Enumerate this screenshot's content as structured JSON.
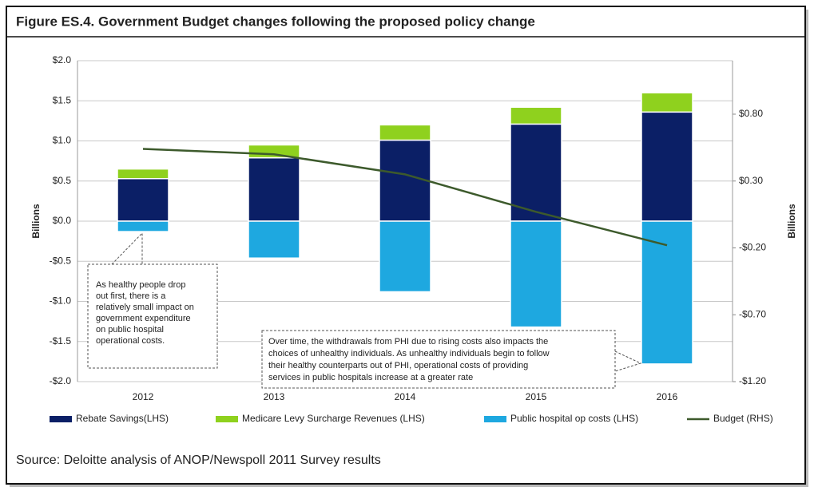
{
  "chart_data": {
    "type": "bar",
    "title": "Figure ES.4. Government Budget changes following the proposed policy change",
    "ylabel": "Billions",
    "y2label": "Billions",
    "categories": [
      "2012",
      "2013",
      "2014",
      "2015",
      "2016"
    ],
    "series": [
      {
        "name": "Rebate Savings(LHS)",
        "color": "#0b1f66",
        "values": [
          0.53,
          0.79,
          1.01,
          1.21,
          1.36
        ]
      },
      {
        "name": "Medicare Levy Surcharge Revenues (LHS)",
        "color": "#8fd11e",
        "values": [
          0.12,
          0.16,
          0.19,
          0.21,
          0.24
        ]
      },
      {
        "name": "Public hospital op costs (LHS)",
        "color": "#1ea8e0",
        "values": [
          -0.13,
          -0.46,
          -0.88,
          -1.32,
          -1.78
        ]
      },
      {
        "name": "Budget (RHS)",
        "color": "#3d5a2c",
        "type": "line",
        "axis": "y2",
        "values": [
          0.54,
          0.5,
          0.35,
          0.07,
          -0.18
        ]
      }
    ],
    "ylim": [
      -2.0,
      2.0
    ],
    "yticks": [
      {
        "value": 2.0,
        "label": "$2.0"
      },
      {
        "value": 1.5,
        "label": "$1.5"
      },
      {
        "value": 1.0,
        "label": "$1.0"
      },
      {
        "value": 0.5,
        "label": "$0.5"
      },
      {
        "value": 0.0,
        "label": "$0.0"
      },
      {
        "value": -0.5,
        "label": "-$0.5"
      },
      {
        "value": -1.0,
        "label": "-$1.0"
      },
      {
        "value": -1.5,
        "label": "-$1.5"
      },
      {
        "value": -2.0,
        "label": "-$2.0"
      }
    ],
    "y2lim": [
      -1.2,
      1.2
    ],
    "y2ticks": [
      {
        "value": 0.8,
        "label": "$0.80"
      },
      {
        "value": 0.3,
        "label": "$0.30"
      },
      {
        "value": -0.2,
        "label": "-$0.20"
      },
      {
        "value": -0.7,
        "label": "-$0.70"
      },
      {
        "value": -1.2,
        "label": "-$1.20"
      }
    ],
    "grid": true,
    "legend": "bottom",
    "annotations": [
      {
        "lines": [
          "As healthy people drop",
          "out first, there is a",
          "relatively small impact on",
          "government expenditure",
          "on public hospital",
          "operational costs."
        ]
      },
      {
        "lines": [
          "Over time, the withdrawals from PHI due to rising costs also impacts the",
          "choices of unhealthy individuals. As unhealthy individuals begin to follow",
          "their healthy counterparts out of PHI, operational  costs of providing",
          "services in public hospitals increase at a greater rate"
        ]
      }
    ],
    "source": "Source: Deloitte analysis of ANOP/Newspoll 2011 Survey results"
  }
}
